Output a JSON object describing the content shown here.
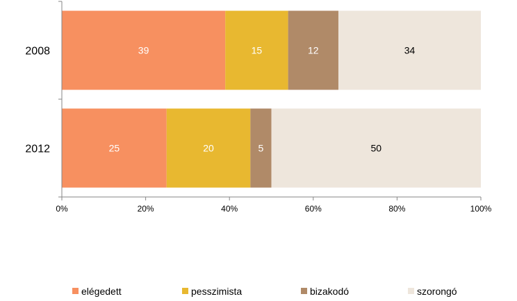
{
  "chart_data": {
    "type": "bar",
    "orientation": "horizontal",
    "stacked": true,
    "percent_stacked": true,
    "categories": [
      "2008",
      "2012"
    ],
    "series": [
      {
        "name": "elégedett",
        "color": "#F79060",
        "values": [
          39,
          25
        ]
      },
      {
        "name": "pesszimista",
        "color": "#E8B830",
        "values": [
          15,
          20
        ]
      },
      {
        "name": "bizakodó",
        "color": "#B08A68",
        "values": [
          12,
          5
        ]
      },
      {
        "name": "szorongó",
        "color": "#EEE6DC",
        "values": [
          34,
          50
        ]
      }
    ],
    "data_label_colors": [
      "#FFFFFF",
      "#FFFFFF",
      "#FFFFFF",
      "#000000"
    ],
    "x_ticks": [
      "0%",
      "20%",
      "40%",
      "60%",
      "80%",
      "100%"
    ],
    "xlim": [
      0,
      100
    ],
    "title": "",
    "xlabel": "",
    "ylabel": "",
    "grid": false,
    "legend_position": "bottom"
  }
}
